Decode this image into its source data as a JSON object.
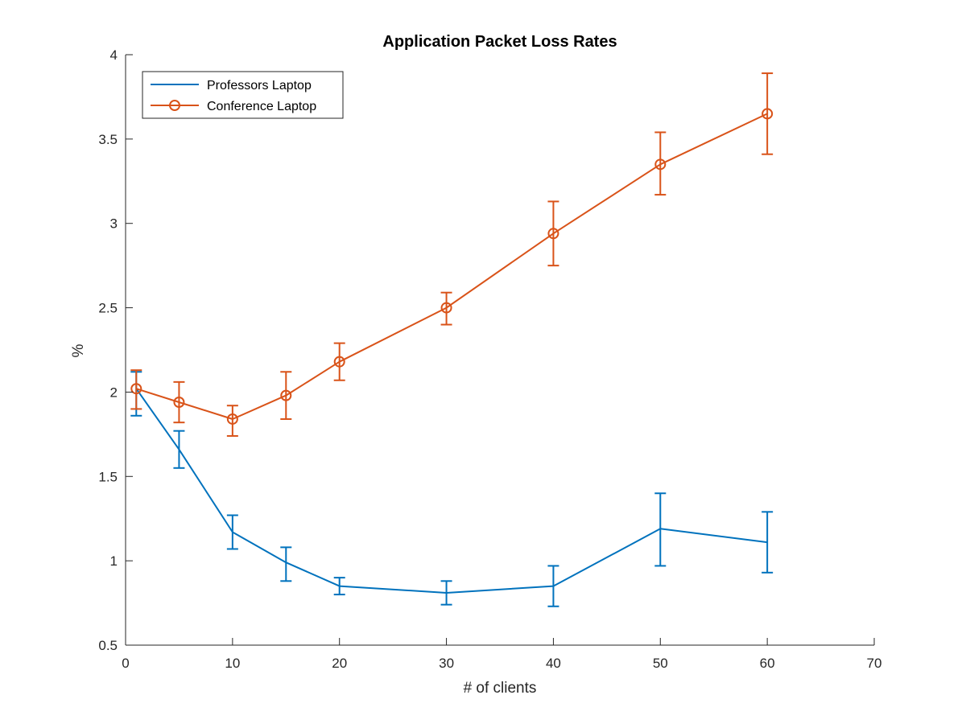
{
  "chart_data": {
    "type": "line",
    "title": "Application Packet Loss Rates",
    "xlabel": "# of clients",
    "ylabel": "%",
    "xlim": [
      0,
      70
    ],
    "ylim": [
      0.5,
      4
    ],
    "xticks": [
      0,
      10,
      20,
      30,
      40,
      50,
      60,
      70
    ],
    "yticks": [
      0.5,
      1,
      1.5,
      2,
      2.5,
      3,
      3.5,
      4
    ],
    "xtick_labels": [
      "0",
      "10",
      "20",
      "30",
      "40",
      "50",
      "60",
      "70"
    ],
    "ytick_labels": [
      "0.5",
      "1",
      "1.5",
      "2",
      "2.5",
      "3",
      "3.5",
      "4"
    ],
    "grid": false,
    "legend_position": "top-left",
    "error_bars": true,
    "series": [
      {
        "name": "Professors Laptop",
        "color": "#0072BD",
        "marker": "none",
        "x": [
          1,
          5,
          10,
          15,
          20,
          30,
          40,
          50,
          60
        ],
        "y": [
          2.02,
          1.66,
          1.17,
          0.99,
          0.85,
          0.81,
          0.85,
          1.19,
          1.11
        ],
        "err_low": [
          1.86,
          1.55,
          1.07,
          0.88,
          0.8,
          0.74,
          0.73,
          0.97,
          0.93
        ],
        "err_high": [
          2.12,
          1.77,
          1.27,
          1.08,
          0.9,
          0.88,
          0.97,
          1.4,
          1.29
        ]
      },
      {
        "name": "Conference Laptop",
        "color": "#D95319",
        "marker": "circle",
        "x": [
          1,
          5,
          10,
          15,
          20,
          30,
          40,
          50,
          60
        ],
        "y": [
          2.02,
          1.94,
          1.84,
          1.98,
          2.18,
          2.5,
          2.94,
          3.35,
          3.65
        ],
        "err_low": [
          1.9,
          1.82,
          1.74,
          1.84,
          2.07,
          2.4,
          2.75,
          3.17,
          3.41
        ],
        "err_high": [
          2.13,
          2.06,
          1.92,
          2.12,
          2.29,
          2.59,
          3.13,
          3.54,
          3.89
        ]
      }
    ]
  }
}
